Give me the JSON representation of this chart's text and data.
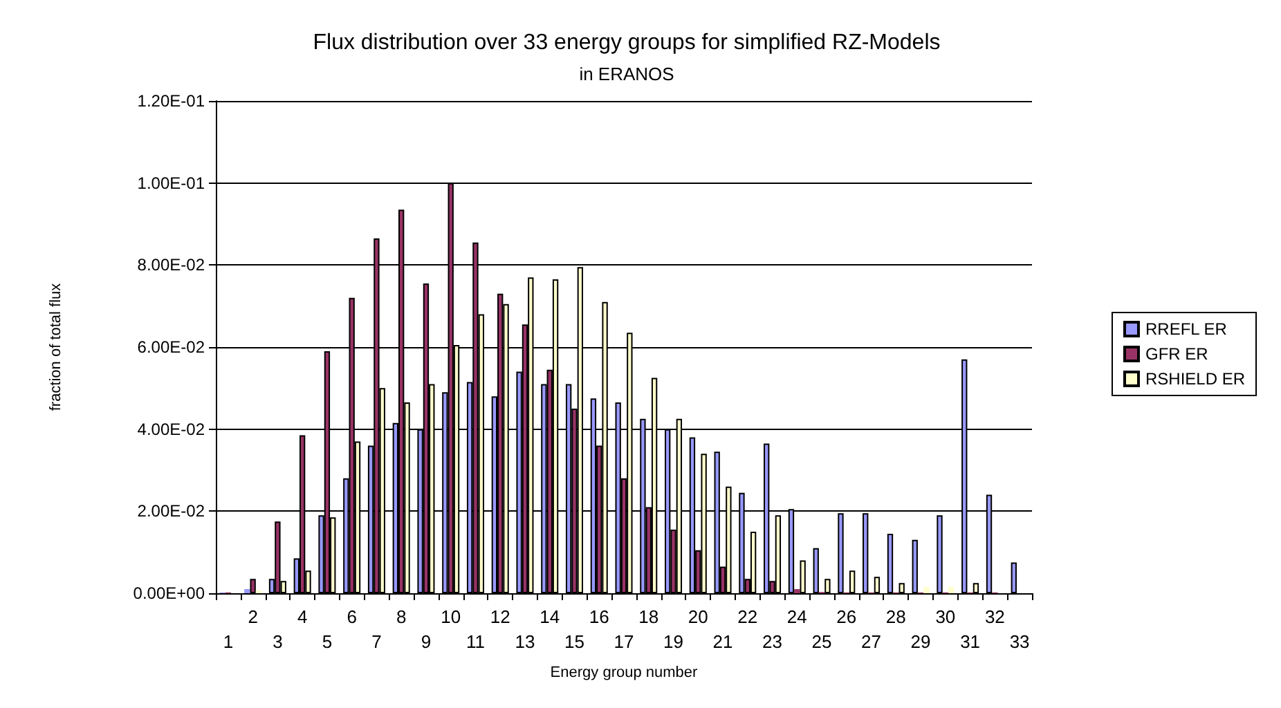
{
  "chart_data": {
    "type": "bar",
    "title": "Flux distribution over 33 energy groups for simplified RZ-Models",
    "subtitle": "in ERANOS",
    "xlabel": "Energy group number",
    "ylabel": "fraction of total flux",
    "categories": [
      "1",
      "2",
      "3",
      "4",
      "5",
      "6",
      "7",
      "8",
      "9",
      "10",
      "11",
      "12",
      "13",
      "14",
      "15",
      "16",
      "17",
      "18",
      "19",
      "20",
      "21",
      "22",
      "23",
      "24",
      "25",
      "26",
      "27",
      "28",
      "29",
      "30",
      "31",
      "32",
      "33"
    ],
    "series": [
      {
        "name": "RREFL ER",
        "color": "#9999ff",
        "values": [
          0.0002,
          0.001,
          0.0035,
          0.0085,
          0.019,
          0.028,
          0.036,
          0.0415,
          0.04,
          0.049,
          0.0515,
          0.048,
          0.054,
          0.051,
          0.051,
          0.0475,
          0.0465,
          0.0425,
          0.04,
          0.038,
          0.0345,
          0.0245,
          0.0365,
          0.0205,
          0.011,
          0.0195,
          0.0195,
          0.0145,
          0.013,
          0.019,
          0.057,
          0.024,
          0.0075
        ]
      },
      {
        "name": "GFR ER",
        "color": "#993366",
        "values": [
          0.0002,
          0.0035,
          0.0175,
          0.0385,
          0.059,
          0.072,
          0.0865,
          0.0935,
          0.0755,
          0.1,
          0.0855,
          0.073,
          0.0655,
          0.0545,
          0.045,
          0.036,
          0.028,
          0.021,
          0.0155,
          0.0105,
          0.0065,
          0.0035,
          0.003,
          0.001,
          0.0003,
          0.0002,
          0.0002,
          0.0002,
          0.0002,
          0.0002,
          0.0002,
          0.0002,
          0
        ]
      },
      {
        "name": "RSHIELD ER",
        "color": "#ffffcc",
        "values": [
          null,
          0.0007,
          0.003,
          0.0055,
          0.0185,
          0.037,
          0.05,
          0.0465,
          0.051,
          0.0605,
          0.068,
          0.0705,
          0.077,
          0.0765,
          0.0795,
          0.071,
          0.0635,
          0.0525,
          0.0425,
          0.034,
          0.026,
          0.015,
          0.019,
          0.008,
          0.0035,
          0.0055,
          0.004,
          0.0025,
          0.0015,
          0.0015,
          0.0025,
          null,
          null
        ]
      }
    ],
    "ylim": [
      0,
      0.12
    ],
    "yticks": [
      {
        "value": 0,
        "label": "0.00E+00"
      },
      {
        "value": 0.02,
        "label": "2.00E-02"
      },
      {
        "value": 0.04,
        "label": "4.00E-02"
      },
      {
        "value": 0.06,
        "label": "6.00E-02"
      },
      {
        "value": 0.08,
        "label": "8.00E-02"
      },
      {
        "value": 0.1,
        "label": "1.00E-01"
      },
      {
        "value": 0.12,
        "label": "1.20E-01"
      }
    ],
    "grid": "y",
    "legend": "right"
  }
}
